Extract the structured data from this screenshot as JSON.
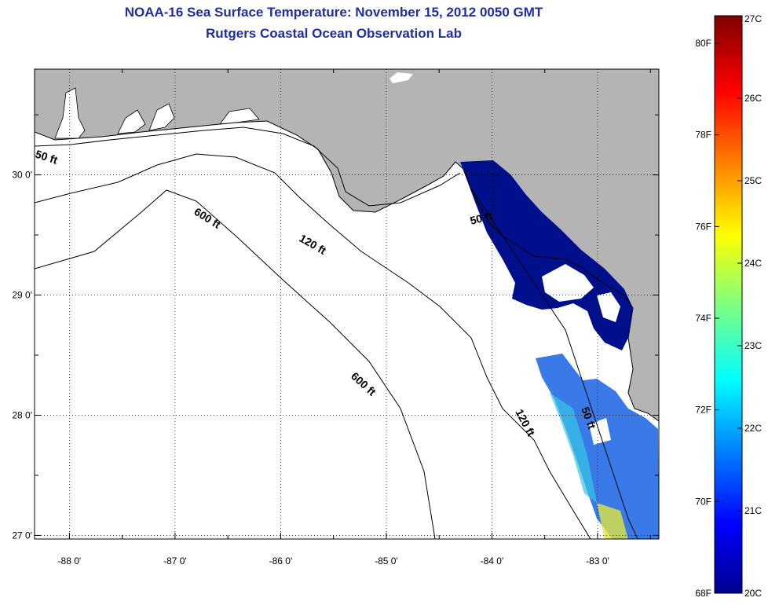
{
  "title": {
    "line1": "NOAA-16 Sea Surface Temperature:  November 15, 2012 0050 GMT",
    "line2": "Rutgers Coastal Ocean Observation Lab"
  },
  "map": {
    "lon_range": [
      -88.33,
      -82.42
    ],
    "lat_range": [
      26.97,
      30.88
    ],
    "x_ticks": [
      {
        "value": -88,
        "label": "-88 0'"
      },
      {
        "value": -87,
        "label": "-87 0'"
      },
      {
        "value": -86,
        "label": "-86 0'"
      },
      {
        "value": -85,
        "label": "-85 0'"
      },
      {
        "value": -84,
        "label": "-84 0'"
      },
      {
        "value": -83,
        "label": "-83 0'"
      }
    ],
    "y_ticks": [
      {
        "value": 30,
        "label": "30 0'"
      },
      {
        "value": 29,
        "label": "29 0'"
      },
      {
        "value": 28,
        "label": "28 0'"
      },
      {
        "value": 27,
        "label": "27 0'"
      }
    ],
    "contour_labels": [
      "50 ft",
      "600 ft",
      "120 ft",
      "50 ft",
      "600 ft",
      "120 ft",
      "50 ft"
    ],
    "colors": {
      "land": "#b4b4b4",
      "cold_water": "#00108c",
      "warm_water": "#3a7ae8",
      "cloud": "#ffffff"
    }
  },
  "colorbar": {
    "celsius": [
      "27C",
      "26C",
      "25C",
      "24C",
      "23C",
      "22C",
      "21C",
      "20C"
    ],
    "fahrenheit": [
      "80F",
      "78F",
      "76F",
      "74F",
      "72F",
      "70F",
      "68F"
    ],
    "range_c": [
      20,
      27
    ]
  }
}
